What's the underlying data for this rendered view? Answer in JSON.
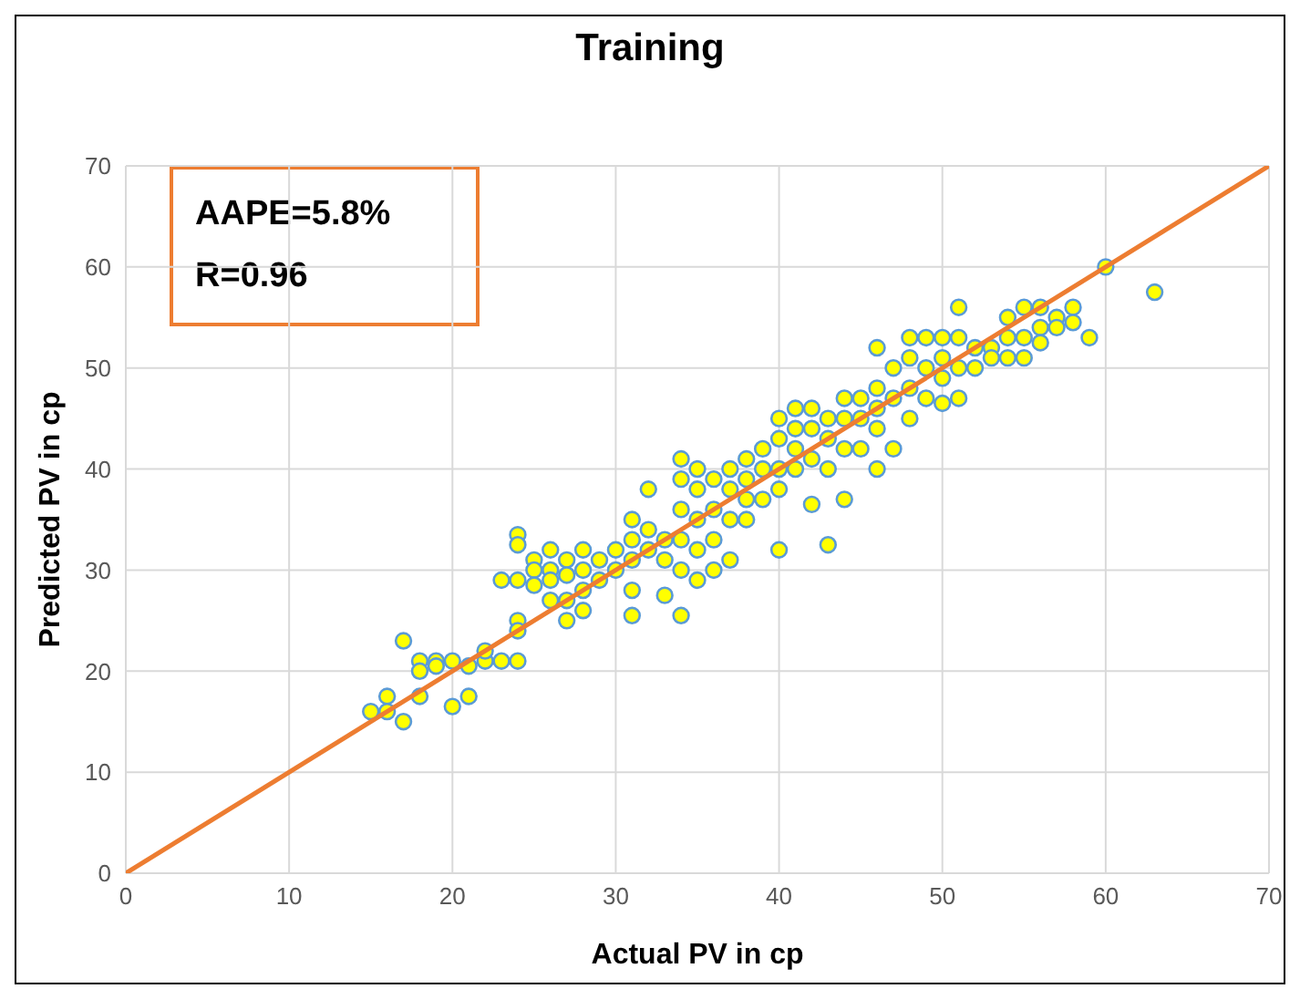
{
  "chart_data": {
    "type": "scatter",
    "title": "Training",
    "xlabel": "Actual PV in cp",
    "ylabel": "Predicted PV in cp",
    "xlim": [
      0,
      70
    ],
    "ylim": [
      0,
      70
    ],
    "xticks": [
      0,
      10,
      20,
      30,
      40,
      50,
      60,
      70
    ],
    "yticks": [
      0,
      10,
      20,
      30,
      40,
      50,
      60,
      70
    ],
    "grid": true,
    "marker": "circle",
    "annotations": [
      "AAPE=5.8%",
      "R=0.96"
    ],
    "series": [
      {
        "color": "#ffff00",
        "x": [
          15,
          16,
          16,
          17,
          17,
          18,
          18,
          18,
          19,
          19,
          20,
          20,
          21,
          21,
          22,
          22,
          23,
          23,
          24,
          24,
          24,
          24,
          24,
          24,
          25,
          25,
          25,
          26,
          26,
          26,
          26,
          27,
          27,
          27,
          27,
          28,
          28,
          28,
          28,
          29,
          29,
          30,
          30,
          31,
          31,
          31,
          31,
          31,
          32,
          32,
          32,
          33,
          33,
          33,
          34,
          34,
          34,
          34,
          34,
          34,
          35,
          35,
          35,
          35,
          35,
          36,
          36,
          36,
          36,
          37,
          37,
          37,
          37,
          38,
          38,
          38,
          38,
          39,
          39,
          39,
          40,
          40,
          40,
          40,
          40,
          41,
          41,
          41,
          41,
          42,
          42,
          42,
          42,
          43,
          43,
          43,
          43,
          44,
          44,
          44,
          44,
          45,
          45,
          45,
          46,
          46,
          46,
          46,
          46,
          47,
          47,
          47,
          48,
          48,
          48,
          48,
          49,
          49,
          49,
          50,
          50,
          50,
          50,
          51,
          51,
          51,
          51,
          52,
          52,
          53,
          53,
          54,
          54,
          54,
          55,
          55,
          55,
          56,
          56,
          56,
          57,
          57,
          58,
          58,
          59,
          60,
          63
        ],
        "values": [
          16,
          17.5,
          16,
          23,
          15,
          21,
          20,
          17.5,
          21,
          20.5,
          21,
          16.5,
          17.5,
          20.5,
          21,
          22,
          29,
          21,
          33.5,
          32.5,
          29,
          25,
          24,
          21,
          31,
          30,
          28.5,
          32,
          30,
          29,
          27,
          31,
          29.5,
          27,
          25,
          32,
          30,
          28,
          26,
          31,
          29,
          32,
          30,
          35,
          33,
          31,
          28,
          25.5,
          38,
          34,
          32,
          33,
          31,
          27.5,
          41,
          39,
          36,
          33,
          30,
          25.5,
          40,
          38,
          35,
          32,
          29,
          39,
          36,
          33,
          30,
          40,
          38,
          35,
          31,
          41,
          39,
          37,
          35,
          42,
          40,
          37,
          45,
          43,
          40,
          38,
          32,
          46,
          44,
          42,
          40,
          46,
          44,
          41,
          36.5,
          45,
          43,
          40,
          32.5,
          47,
          45,
          42,
          37,
          47,
          45,
          42,
          52,
          48,
          46,
          44,
          40,
          50,
          47,
          42,
          53,
          51,
          48,
          45,
          53,
          50,
          47,
          53,
          51,
          49,
          46.5,
          56,
          53,
          50,
          47,
          52,
          50,
          52,
          51,
          55,
          53,
          51,
          56,
          53,
          51,
          56,
          54,
          52.5,
          55,
          54,
          56,
          54.5,
          53,
          60,
          57.5
        ]
      },
      {
        "type": "line",
        "marker": "none",
        "color": "#ed7d31",
        "x": [
          0,
          70
        ],
        "values": [
          0,
          70
        ]
      }
    ]
  }
}
